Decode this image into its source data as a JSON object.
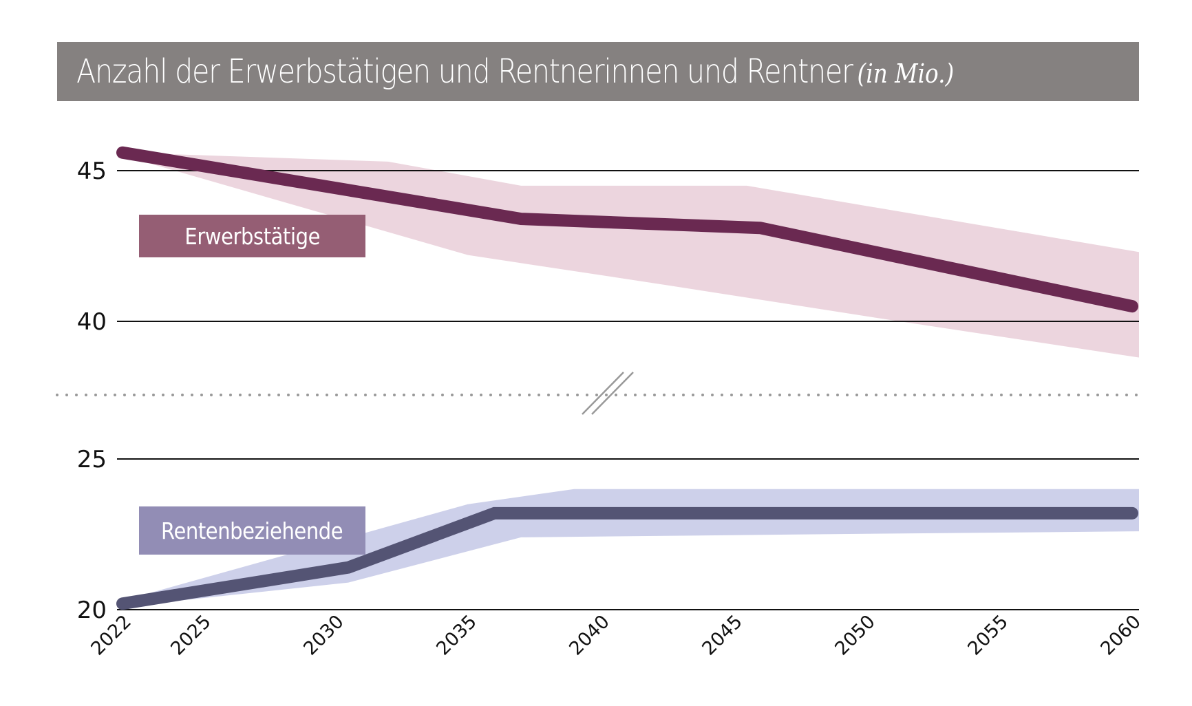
{
  "title": {
    "main": "Anzahl der Erwerbstätigen und Rentnerinnen und Rentner",
    "unit": "(in Mio.)"
  },
  "colors": {
    "title_bar": "#858180",
    "workers_line": "#6a2951",
    "workers_band": "#ecd5de",
    "workers_label_bg": "#955e74",
    "pensioners_line": "#545474",
    "pensioners_band": "#cdd0ea",
    "pensioners_label_bg": "#928db5",
    "gridline": "#111111",
    "break_line": "#999999"
  },
  "chart_data": {
    "type": "line",
    "title": "Anzahl der Erwerbstätigen und Rentnerinnen und Rentner (in Mio.)",
    "xlabel": "",
    "ylabel": "",
    "x_ticks": [
      "2022",
      "2025",
      "2030",
      "2035",
      "2040",
      "2045",
      "2050",
      "2055",
      "2060"
    ],
    "xlim": [
      2022,
      2060
    ],
    "axis_break": true,
    "panels": [
      {
        "name": "upper",
        "ylim": [
          38.5,
          46
        ],
        "y_ticks": [
          "45",
          "40"
        ],
        "y_tick_values": [
          45,
          40
        ]
      },
      {
        "name": "lower",
        "ylim": [
          20,
          27.3
        ],
        "y_ticks": [
          "25",
          "20"
        ],
        "y_tick_values": [
          25,
          20
        ]
      }
    ],
    "series": [
      {
        "name": "Erwerbstätige",
        "panel": "upper",
        "x": [
          2022,
          2037,
          2046,
          2060
        ],
        "values": [
          45.6,
          43.4,
          43.1,
          40.5
        ],
        "band_upper": {
          "x": [
            2022,
            2032,
            2037,
            2045.5,
            2060
          ],
          "values": [
            45.6,
            45.3,
            44.5,
            44.5,
            42.3
          ]
        },
        "band_lower": {
          "x": [
            2022,
            2035,
            2042.5,
            2050.5,
            2060
          ],
          "values": [
            45.5,
            42.2,
            41.2,
            40.1,
            38.8
          ]
        }
      },
      {
        "name": "Rentenbeziehende",
        "panel": "lower",
        "x": [
          2022,
          2030.5,
          2036,
          2060
        ],
        "values": [
          20.2,
          21.4,
          23.2,
          23.2
        ],
        "band_upper": {
          "x": [
            2022,
            2035,
            2039,
            2060
          ],
          "values": [
            20.3,
            23.5,
            24.0,
            24.0
          ]
        },
        "band_lower": {
          "x": [
            2022,
            2030.5,
            2037,
            2048,
            2060
          ],
          "values": [
            20.1,
            20.9,
            22.4,
            22.5,
            22.6
          ]
        }
      }
    ]
  }
}
